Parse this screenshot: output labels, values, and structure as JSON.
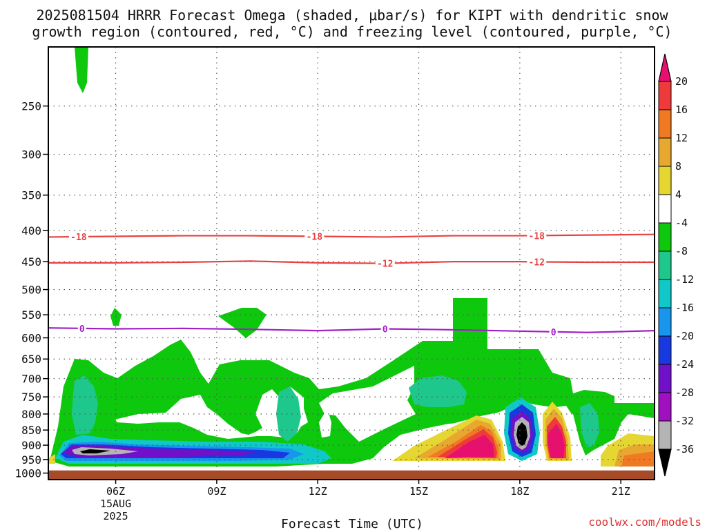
{
  "chart_data": {
    "type": "heatmap",
    "title_line1": "2025081504 HRRR Forecast Omega (shaded, μbar/s) for KIPT with dendritic snow",
    "title_line2": "growth region (contoured, red, °C) and freezing level (contoured, purple, °C)",
    "xlabel": "Forecast Time (UTC)",
    "x_ticks": [
      {
        "hour": 6,
        "label": "06Z",
        "sub1": "15AUG",
        "sub2": "2025"
      },
      {
        "hour": 9,
        "label": "09Z"
      },
      {
        "hour": 12,
        "label": "12Z"
      },
      {
        "hour": 15,
        "label": "15Z"
      },
      {
        "hour": 18,
        "label": "18Z"
      },
      {
        "hour": 21,
        "label": "21Z"
      }
    ],
    "x_range_hours": [
      4,
      22
    ],
    "y_axis": "pressure (hPa), logarithmic",
    "y_range": [
      1025,
      200
    ],
    "y_ticks": [
      250,
      300,
      350,
      400,
      450,
      500,
      550,
      600,
      650,
      700,
      750,
      800,
      850,
      900,
      950,
      1000
    ],
    "grid": true,
    "colorbar": {
      "labels": [
        "20",
        "16",
        "12",
        "8",
        "4",
        "-4",
        "-8",
        "-12",
        "-16",
        "-20",
        "-24",
        "-28",
        "-32",
        "-36"
      ],
      "colors": [
        "#e8106e",
        "#ee3a3a",
        "#f07a22",
        "#e8a830",
        "#e6d632",
        "#ffffff",
        "#0ec80e",
        "#1ec88c",
        "#10c8c8",
        "#1896ee",
        "#1838e0",
        "#7010c8",
        "#a010c0",
        "#b4b4b4",
        "#000000"
      ]
    },
    "contours": [
      {
        "name": "dendritic-minus18",
        "label": "-18",
        "color": "#e84040",
        "pressure": [
          410,
          409,
          408,
          408,
          409,
          410,
          408,
          408,
          407,
          406
        ],
        "hours": [
          4,
          6,
          8,
          10,
          12,
          14,
          16,
          18,
          20,
          22
        ],
        "label_hours": [
          4.9,
          11.9,
          18.5
        ]
      },
      {
        "name": "dendritic-minus12",
        "label": "-12",
        "color": "#e84040",
        "pressure": [
          452,
          452,
          451,
          449,
          452,
          453,
          450,
          450,
          451,
          451
        ],
        "hours": [
          4,
          6,
          8,
          10,
          12,
          14,
          16,
          18,
          20,
          22
        ],
        "label_hours": [
          14,
          18.5
        ]
      },
      {
        "name": "freezing-level-0",
        "label": "0",
        "color": "#a020c8",
        "pressure": [
          578,
          580,
          579,
          581,
          584,
          580,
          582,
          585,
          588,
          584
        ],
        "hours": [
          4,
          6,
          8,
          10,
          12,
          14,
          16,
          18,
          20,
          22
        ],
        "label_hours": [
          5,
          14,
          19
        ]
      }
    ],
    "terrain_top_pressure": 990,
    "terrain_color": "#a64a28"
  },
  "footer": {
    "credit": "coolwx.com/models",
    "credit_color": "#e03030"
  }
}
